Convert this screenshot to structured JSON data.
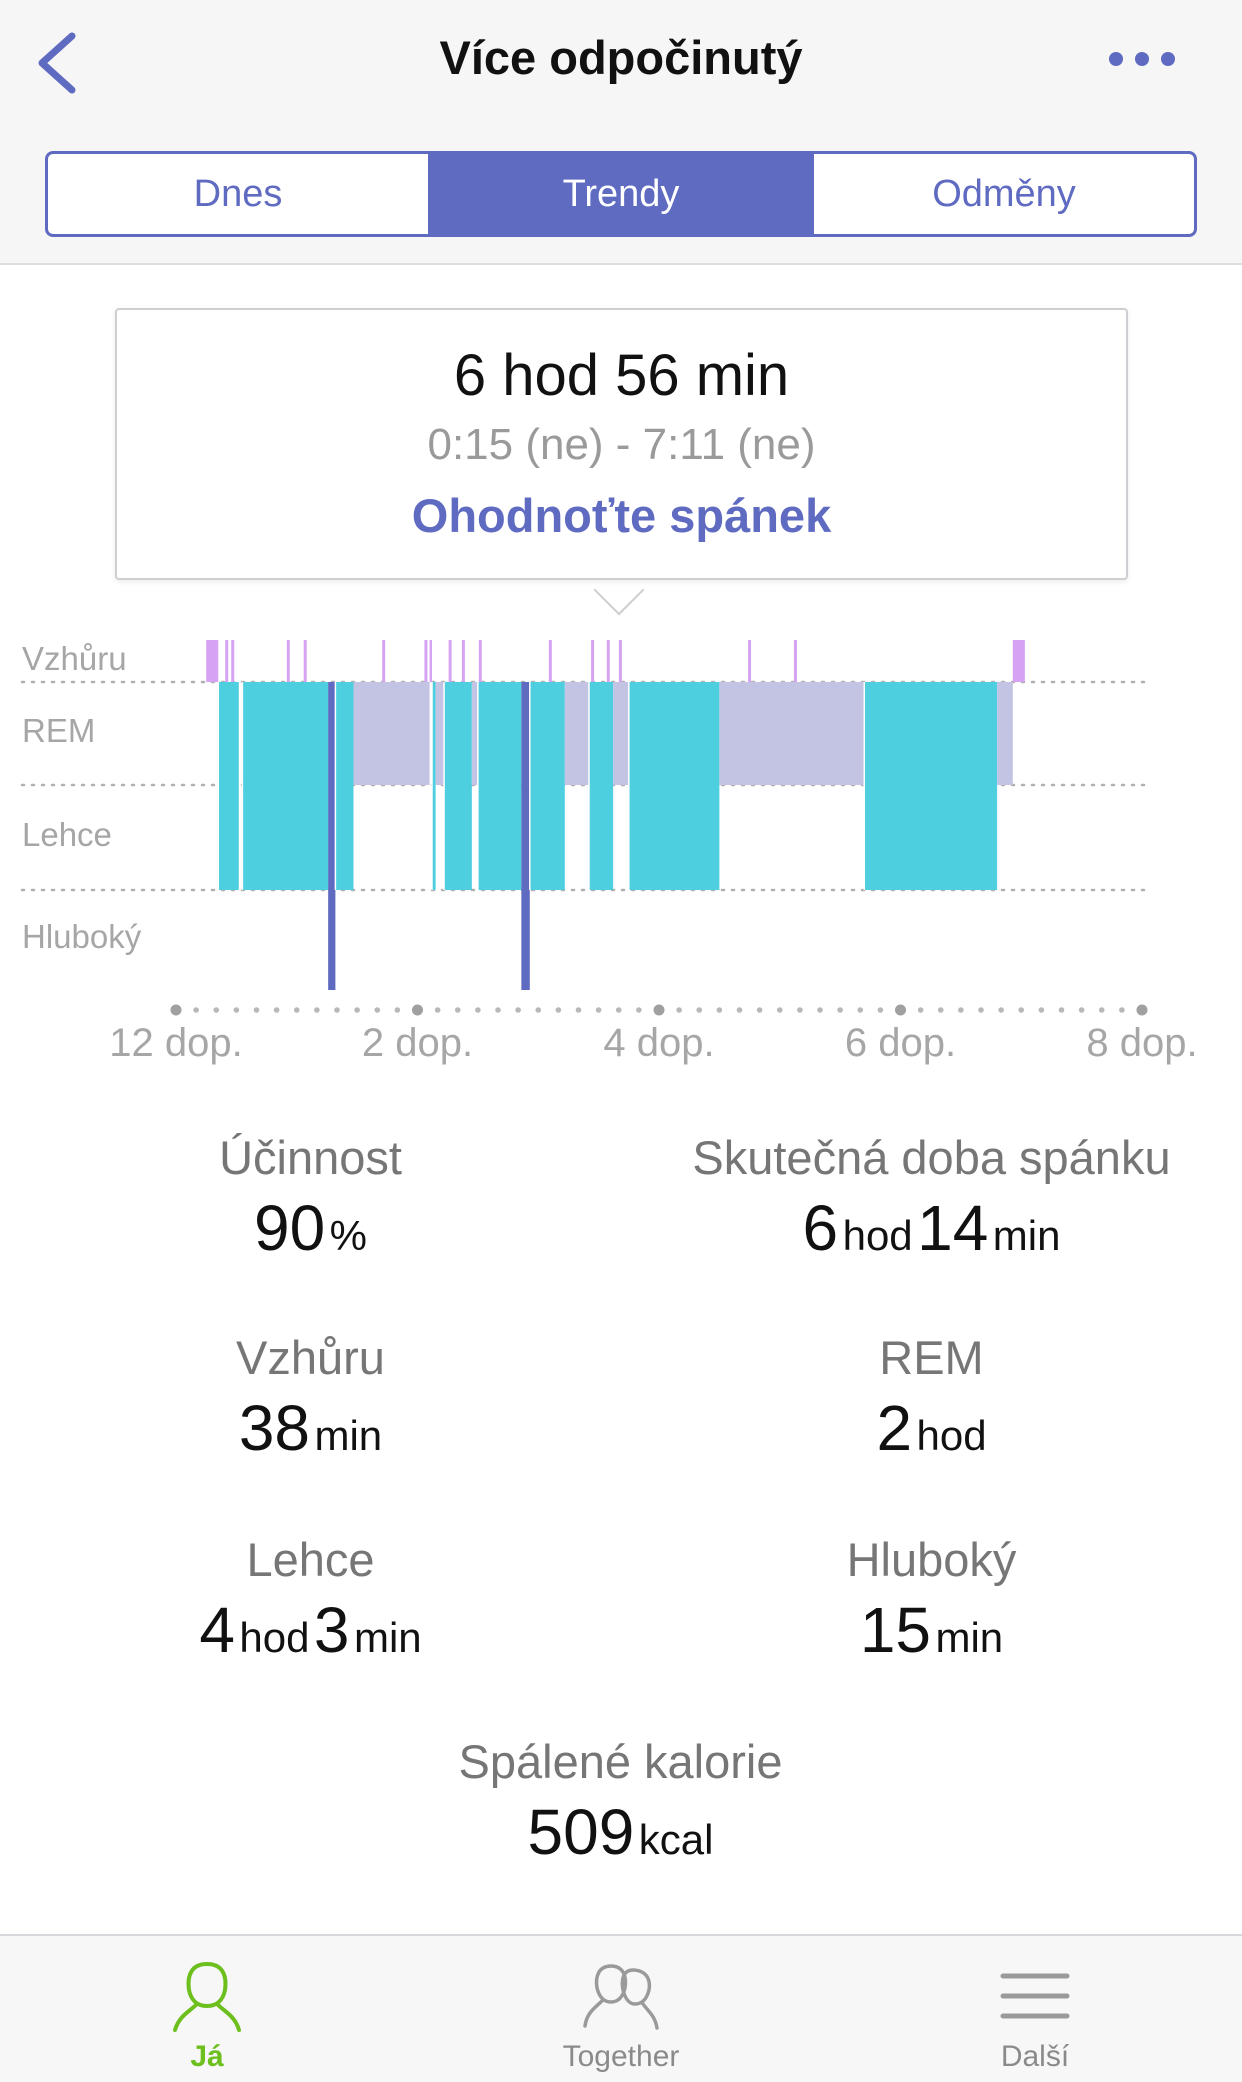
{
  "header": {
    "title": "Více odpočinutý",
    "back_icon": "chevron-left-icon",
    "more_icon": "more-horizontal-icon",
    "accent_color": "#5f6ac1"
  },
  "segments": [
    {
      "label": "Dnes",
      "active": false
    },
    {
      "label": "Trendy",
      "active": true
    },
    {
      "label": "Odměny",
      "active": false
    }
  ],
  "summary": {
    "duration": "6 hod  56 min",
    "range": "0:15 (ne) - 7:11 (ne)",
    "rate_link": "Ohodnoťte spánek"
  },
  "chart_data": {
    "type": "area",
    "stages": [
      "Vzhůru",
      "REM",
      "Lehce",
      "Hluboký"
    ],
    "x_ticks": [
      "12 dop.",
      "2 dop.",
      "4 dop.",
      "6 dop.",
      "8 dop."
    ],
    "x_range_hours": [
      0,
      8
    ],
    "stage_colors": {
      "Vzhůru": "#d5a3f2",
      "REM": "#c3c3e4",
      "Lehce": "#4ecfe0",
      "Hluboký": "#5f6ac1"
    },
    "segments": [
      {
        "stage": "Vzhůru",
        "start": 0.25,
        "end": 0.35
      },
      {
        "stage": "Lehce",
        "start": 0.35,
        "end": 0.52
      },
      {
        "stage": "Lehce",
        "start": 0.55,
        "end": 1.26
      },
      {
        "stage": "Hluboký",
        "start": 1.26,
        "end": 1.32
      },
      {
        "stage": "Lehce",
        "start": 1.32,
        "end": 1.47
      },
      {
        "stage": "REM",
        "start": 1.47,
        "end": 2.1
      },
      {
        "stage": "Vzhůru",
        "start": 2.1,
        "end": 2.12
      },
      {
        "stage": "Lehce",
        "start": 2.12,
        "end": 2.15
      },
      {
        "stage": "REM",
        "start": 2.15,
        "end": 2.22
      },
      {
        "stage": "Lehce",
        "start": 2.22,
        "end": 2.45
      },
      {
        "stage": "REM",
        "start": 2.45,
        "end": 2.5
      },
      {
        "stage": "Lehce",
        "start": 2.5,
        "end": 2.86
      },
      {
        "stage": "Hluboký",
        "start": 2.86,
        "end": 2.93
      },
      {
        "stage": "Lehce",
        "start": 2.93,
        "end": 3.22
      },
      {
        "stage": "REM",
        "start": 3.22,
        "end": 3.42
      },
      {
        "stage": "Lehce",
        "start": 3.42,
        "end": 3.62
      },
      {
        "stage": "REM",
        "start": 3.62,
        "end": 3.75
      },
      {
        "stage": "Lehce",
        "start": 3.75,
        "end": 4.5
      },
      {
        "stage": "REM",
        "start": 4.5,
        "end": 5.7
      },
      {
        "stage": "Lehce",
        "start": 5.7,
        "end": 6.8
      },
      {
        "stage": "REM",
        "start": 6.8,
        "end": 6.93
      },
      {
        "stage": "Vzhůru",
        "start": 6.93,
        "end": 7.03
      }
    ],
    "awake_blips": [
      0.42,
      0.47,
      0.93,
      1.07,
      1.72,
      2.07,
      2.27,
      2.38,
      2.52,
      3.1,
      3.45,
      3.58,
      3.68,
      4.75,
      5.13
    ],
    "gridlines": true
  },
  "stats": [
    {
      "label": "Účinnost",
      "parts": [
        {
          "n": "90",
          "u": "%"
        }
      ]
    },
    {
      "label": "Skutečná doba spánku",
      "parts": [
        {
          "n": "6",
          "u": "hod"
        },
        {
          "n": "14",
          "u": "min"
        }
      ]
    },
    {
      "label": "Vzhůru",
      "parts": [
        {
          "n": "38",
          "u": "min"
        }
      ]
    },
    {
      "label": "REM",
      "parts": [
        {
          "n": "2",
          "u": "hod"
        }
      ]
    },
    {
      "label": "Lehce",
      "parts": [
        {
          "n": "4",
          "u": "hod"
        },
        {
          "n": "3",
          "u": "min"
        }
      ]
    },
    {
      "label": "Hluboký",
      "parts": [
        {
          "n": "15",
          "u": "min"
        }
      ]
    },
    {
      "label": "Spálené kalorie",
      "parts": [
        {
          "n": "509",
          "u": "kcal"
        }
      ]
    }
  ],
  "tabbar": [
    {
      "label": "Já",
      "icon": "person-icon",
      "active": true,
      "color": "#6cbf1c"
    },
    {
      "label": "Together",
      "icon": "people-icon",
      "active": false
    },
    {
      "label": "Další",
      "icon": "menu-icon",
      "active": false
    }
  ]
}
